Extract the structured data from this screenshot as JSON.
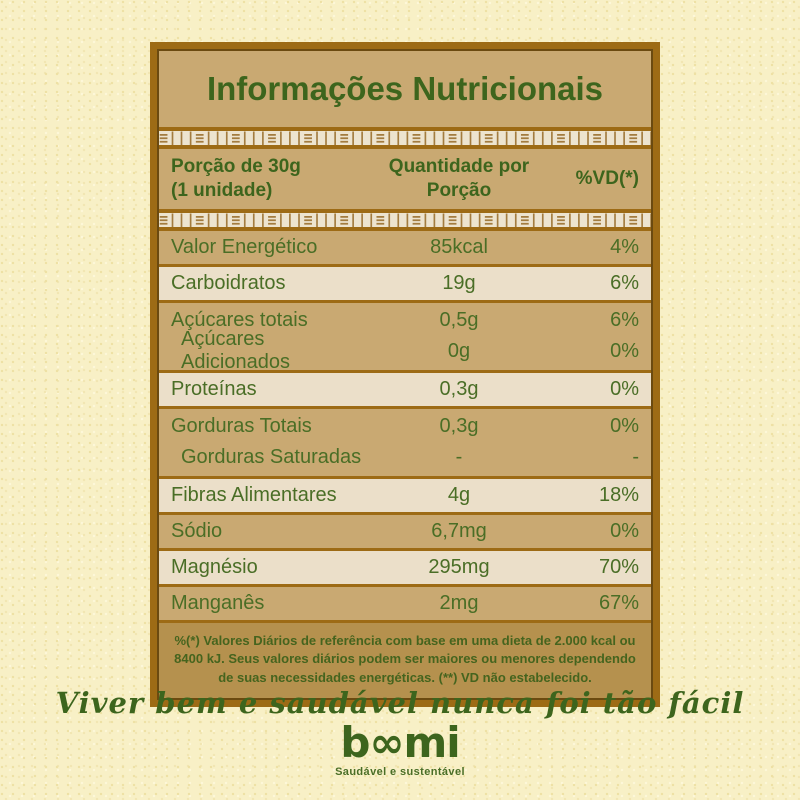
{
  "colors": {
    "page_background": "#f8f0c6",
    "border_brown": "#9d6b15",
    "row_tan": "#c9a972",
    "row_cream": "#ebdfc9",
    "footer_background": "#b5914e",
    "text_green": "#4a6e26"
  },
  "label": {
    "title": "Informações Nutricionais",
    "header": {
      "portion_line1": "Porção de 30g",
      "portion_line2": "(1 unidade)",
      "qty_line1": "Quantidade por",
      "qty_line2": "Porção",
      "vd": "%VD(*)"
    },
    "rows": [
      {
        "name": "Valor Energético",
        "qty": "85kcal",
        "vd": "4%"
      },
      {
        "name": "Carboidratos",
        "qty": "19g",
        "vd": "6%"
      },
      {
        "name": "Açúcares totais",
        "qty": "0,5g",
        "vd": "6%"
      },
      {
        "name": "Açúcares Adicionados",
        "qty": "0g",
        "vd": "0%"
      },
      {
        "name": "Proteínas",
        "qty": "0,3g",
        "vd": "0%"
      },
      {
        "name": "Gorduras Totais",
        "qty": "0,3g",
        "vd": "0%"
      },
      {
        "name": "Gorduras Saturadas",
        "qty": "-",
        "vd": "-"
      },
      {
        "name": "Fibras Alimentares",
        "qty": "4g",
        "vd": "18%"
      },
      {
        "name": "Sódio",
        "qty": "6,7mg",
        "vd": "0%"
      },
      {
        "name": "Magnésio",
        "qty": "295mg",
        "vd": "70%"
      },
      {
        "name": "Manganês",
        "qty": "2mg",
        "vd": "67%"
      }
    ],
    "footnote": "%(*) Valores Diários de referência com base em uma dieta de 2.000 kcal ou 8400 kJ. Seus valores diários podem ser maiores ou menores dependendo de suas necessidades energéticas. (**) VD não estabelecido."
  },
  "slogan": "Viver bem e saudável nunca foi tão fácil",
  "brand": {
    "name": "boomi",
    "tagline": "Saudável e sustentável"
  }
}
